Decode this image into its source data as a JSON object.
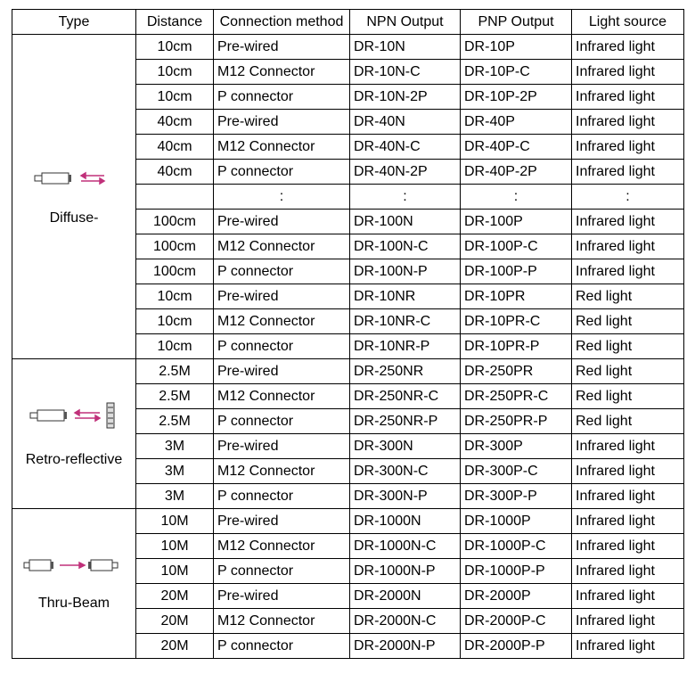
{
  "table": {
    "header": [
      "Type",
      "Distance",
      "Connection method",
      "NPN Output",
      "PNP Output",
      "Light source"
    ],
    "groups": [
      {
        "type": "Diffuse-",
        "rows": [
          [
            "10cm",
            "Pre-wired",
            "DR-10N",
            "DR-10P",
            "Infrared light"
          ],
          [
            "10cm",
            "M12 Connector",
            "DR-10N-C",
            "DR-10P-C",
            "Infrared light"
          ],
          [
            "10cm",
            "P connector",
            "DR-10N-2P",
            "DR-10P-2P",
            "Infrared light"
          ],
          [
            "40cm",
            "Pre-wired",
            "DR-40N",
            "DR-40P",
            "Infrared light"
          ],
          [
            "40cm",
            "M12 Connector",
            "DR-40N-C",
            "DR-40P-C",
            "Infrared light"
          ],
          [
            "40cm",
            "P connector",
            "DR-40N-2P",
            "DR-40P-2P",
            "Infrared light"
          ],
          [
            ":",
            ":",
            ":",
            ":"
          ],
          [
            "100cm",
            "Pre-wired",
            "DR-100N",
            "DR-100P",
            "Infrared light"
          ],
          [
            "100cm",
            "M12 Connector",
            "DR-100N-C",
            "DR-100P-C",
            "Infrared light"
          ],
          [
            "100cm",
            "P connector",
            "DR-100N-P",
            "DR-100P-P",
            "Infrared light"
          ],
          [
            "10cm",
            "Pre-wired",
            "DR-10NR",
            "DR-10PR",
            "Red light"
          ],
          [
            "10cm",
            "M12 Connector",
            "DR-10NR-C",
            "DR-10PR-C",
            "Red light"
          ],
          [
            "10cm",
            "P connector",
            "DR-10NR-P",
            "DR-10PR-P",
            "Red light"
          ]
        ]
      },
      {
        "type": "Retro-reflective",
        "rows": [
          [
            "2.5M",
            "Pre-wired",
            "DR-250NR",
            "DR-250PR",
            "Red light"
          ],
          [
            "2.5M",
            "M12 Connector",
            "DR-250NR-C",
            "DR-250PR-C",
            "Red light"
          ],
          [
            "2.5M",
            "P connector",
            "DR-250NR-P",
            "DR-250PR-P",
            "Red light"
          ],
          [
            "3M",
            "Pre-wired",
            "DR-300N",
            "DR-300P",
            "Infrared light"
          ],
          [
            "3M",
            "M12 Connector",
            "DR-300N-C",
            "DR-300P-C",
            "Infrared light"
          ],
          [
            "3M",
            "P connector",
            "DR-300N-P",
            "DR-300P-P",
            "Infrared light"
          ]
        ]
      },
      {
        "type": "Thru-Beam",
        "rows": [
          [
            "10M",
            "Pre-wired",
            "DR-1000N",
            "DR-1000P",
            "Infrared light"
          ],
          [
            "10M",
            "M12 Connector",
            "DR-1000N-C",
            "DR-1000P-C",
            "Infrared light"
          ],
          [
            "10M",
            "P connector",
            "DR-1000N-P",
            "DR-1000P-P",
            "Infrared light"
          ],
          [
            "20M",
            "Pre-wired",
            "DR-2000N",
            "DR-2000P",
            "Infrared light"
          ],
          [
            "20M",
            "M12 Connector",
            "DR-2000N-C",
            "DR-2000P-C",
            "Infrared light"
          ],
          [
            "20M",
            "P connector",
            "DR-2000N-P",
            "DR-2000P-P",
            "Infrared light"
          ]
        ]
      }
    ]
  }
}
